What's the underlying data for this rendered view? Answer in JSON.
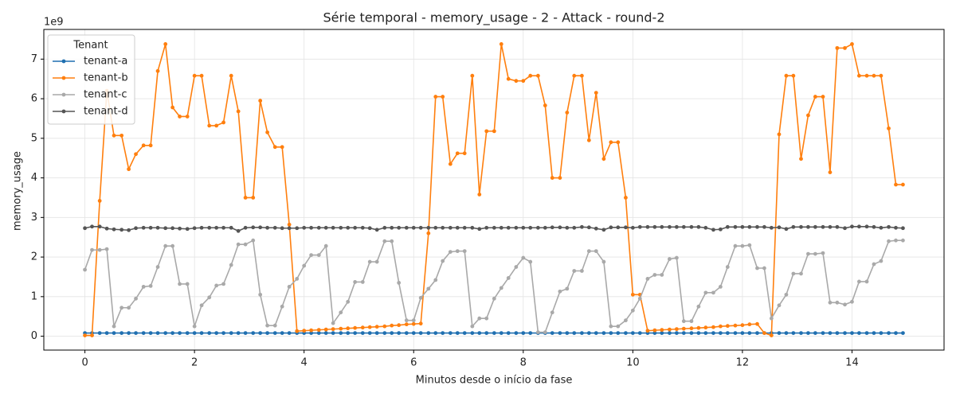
{
  "chart_data": {
    "type": "line",
    "title": "Série temporal - memory_usage - 2 - Attack - round-2",
    "x_label": "Minutos desde o início da fase",
    "y_label": "memory_usage",
    "y_offset_label": "1e9",
    "legend_title": "Tenant",
    "legend_position": "upper left",
    "grid": true,
    "xlim": [
      -0.75,
      15.68
    ],
    "ylim": [
      -0.35,
      7.75
    ],
    "xticks": [
      0,
      2,
      4,
      6,
      8,
      10,
      12,
      14
    ],
    "yticks": [
      0,
      1,
      2,
      3,
      4,
      5,
      6,
      7
    ],
    "x": [
      0,
      0.13,
      0.27,
      0.4,
      0.53,
      0.67,
      0.8,
      0.93,
      1.07,
      1.2,
      1.33,
      1.47,
      1.6,
      1.73,
      1.87,
      2,
      2.13,
      2.27,
      2.4,
      2.53,
      2.67,
      2.8,
      2.93,
      3.07,
      3.2,
      3.33,
      3.47,
      3.6,
      3.73,
      3.87,
      4,
      4.13,
      4.27,
      4.4,
      4.53,
      4.67,
      4.8,
      4.93,
      5.07,
      5.2,
      5.33,
      5.47,
      5.6,
      5.73,
      5.87,
      6,
      6.13,
      6.27,
      6.4,
      6.53,
      6.67,
      6.8,
      6.93,
      7.07,
      7.2,
      7.33,
      7.47,
      7.6,
      7.73,
      7.87,
      8,
      8.13,
      8.27,
      8.4,
      8.53,
      8.67,
      8.8,
      8.93,
      9.07,
      9.2,
      9.33,
      9.47,
      9.6,
      9.73,
      9.87,
      10,
      10.13,
      10.27,
      10.4,
      10.53,
      10.67,
      10.8,
      10.93,
      11.07,
      11.2,
      11.33,
      11.47,
      11.6,
      11.73,
      11.87,
      12,
      12.13,
      12.27,
      12.4,
      12.53,
      12.67,
      12.8,
      12.93,
      13.07,
      13.2,
      13.33,
      13.47,
      13.6,
      13.73,
      13.87,
      14,
      14.13,
      14.27,
      14.4,
      14.53,
      14.67,
      14.8,
      14.93
    ],
    "series": [
      {
        "name": "tenant-a",
        "color": "#1f6fb0",
        "values": [
          0.08,
          0.08,
          0.08,
          0.08,
          0.08,
          0.08,
          0.08,
          0.08,
          0.08,
          0.08,
          0.08,
          0.08,
          0.08,
          0.08,
          0.08,
          0.08,
          0.08,
          0.08,
          0.08,
          0.08,
          0.08,
          0.08,
          0.08,
          0.08,
          0.08,
          0.08,
          0.08,
          0.08,
          0.08,
          0.08,
          0.08,
          0.08,
          0.08,
          0.08,
          0.08,
          0.08,
          0.08,
          0.08,
          0.08,
          0.08,
          0.08,
          0.08,
          0.08,
          0.08,
          0.08,
          0.08,
          0.08,
          0.08,
          0.08,
          0.08,
          0.08,
          0.08,
          0.08,
          0.08,
          0.08,
          0.08,
          0.08,
          0.08,
          0.08,
          0.08,
          0.08,
          0.08,
          0.08,
          0.08,
          0.08,
          0.08,
          0.08,
          0.08,
          0.08,
          0.08,
          0.08,
          0.08,
          0.08,
          0.08,
          0.08,
          0.08,
          0.08,
          0.08,
          0.08,
          0.08,
          0.08,
          0.08,
          0.08,
          0.08,
          0.08,
          0.08,
          0.08,
          0.08,
          0.08,
          0.08,
          0.08,
          0.08,
          0.08,
          0.08,
          0.08,
          0.08,
          0.08,
          0.08,
          0.08,
          0.08,
          0.08,
          0.08,
          0.08,
          0.08,
          0.08,
          0.08,
          0.08,
          0.08,
          0.08,
          0.08,
          0.08,
          0.08,
          0.08
        ]
      },
      {
        "name": "tenant-b",
        "color": "#ff7f0e",
        "values": [
          0.02,
          0.02,
          3.42,
          6.2,
          5.07,
          5.07,
          4.22,
          4.6,
          4.82,
          4.82,
          6.7,
          7.38,
          5.78,
          5.55,
          5.55,
          6.58,
          6.58,
          5.32,
          5.32,
          5.4,
          6.58,
          5.68,
          3.5,
          3.5,
          5.95,
          5.15,
          4.78,
          4.78,
          2.82,
          0.13,
          0.14,
          0.15,
          0.16,
          0.17,
          0.18,
          0.19,
          0.2,
          0.21,
          0.22,
          0.23,
          0.24,
          0.25,
          0.27,
          0.28,
          0.3,
          0.31,
          0.32,
          2.6,
          6.05,
          6.05,
          4.35,
          4.62,
          4.62,
          6.58,
          3.58,
          5.18,
          5.18,
          7.38,
          6.5,
          6.45,
          6.45,
          6.58,
          6.58,
          5.83,
          4.0,
          4.0,
          5.65,
          6.58,
          6.58,
          4.95,
          6.15,
          4.48,
          4.9,
          4.9,
          3.5,
          1.05,
          1.05,
          0.14,
          0.15,
          0.16,
          0.17,
          0.18,
          0.19,
          0.2,
          0.21,
          0.22,
          0.23,
          0.25,
          0.26,
          0.27,
          0.28,
          0.3,
          0.31,
          0.08,
          0.02,
          5.1,
          6.58,
          6.58,
          4.48,
          5.58,
          6.05,
          6.05,
          4.14,
          7.28,
          7.28,
          7.38,
          6.58,
          6.58,
          6.58,
          6.58,
          5.25,
          3.83,
          3.83
        ]
      },
      {
        "name": "tenant-c",
        "color": "#a9a9a9",
        "values": [
          1.68,
          2.18,
          2.18,
          2.2,
          0.25,
          0.72,
          0.72,
          0.95,
          1.25,
          1.27,
          1.75,
          2.28,
          2.28,
          1.32,
          1.32,
          0.25,
          0.78,
          0.98,
          1.28,
          1.32,
          1.8,
          2.32,
          2.32,
          2.42,
          1.05,
          0.27,
          0.27,
          0.75,
          1.25,
          1.45,
          1.78,
          2.05,
          2.05,
          2.28,
          0.33,
          0.6,
          0.87,
          1.37,
          1.37,
          1.88,
          1.88,
          2.4,
          2.4,
          1.35,
          0.4,
          0.4,
          0.97,
          1.2,
          1.42,
          1.9,
          2.13,
          2.15,
          2.15,
          0.25,
          0.45,
          0.45,
          0.95,
          1.22,
          1.47,
          1.75,
          1.98,
          1.88,
          0.1,
          0.1,
          0.6,
          1.13,
          1.2,
          1.65,
          1.65,
          2.15,
          2.15,
          1.88,
          0.25,
          0.25,
          0.4,
          0.65,
          0.95,
          1.45,
          1.55,
          1.55,
          1.95,
          1.98,
          0.38,
          0.38,
          0.75,
          1.1,
          1.1,
          1.25,
          1.75,
          2.28,
          2.28,
          2.3,
          1.72,
          1.72,
          0.45,
          0.78,
          1.05,
          1.58,
          1.58,
          2.08,
          2.08,
          2.1,
          0.85,
          0.85,
          0.8,
          0.87,
          1.38,
          1.38,
          1.82,
          1.9,
          2.4,
          2.42,
          2.42
        ]
      },
      {
        "name": "tenant-d",
        "color": "#555555",
        "values": [
          2.73,
          2.77,
          2.77,
          2.72,
          2.7,
          2.69,
          2.68,
          2.73,
          2.74,
          2.74,
          2.74,
          2.73,
          2.73,
          2.72,
          2.71,
          2.73,
          2.74,
          2.74,
          2.74,
          2.74,
          2.74,
          2.66,
          2.74,
          2.75,
          2.75,
          2.74,
          2.74,
          2.73,
          2.73,
          2.73,
          2.74,
          2.74,
          2.74,
          2.74,
          2.74,
          2.74,
          2.74,
          2.74,
          2.74,
          2.73,
          2.69,
          2.74,
          2.74,
          2.74,
          2.74,
          2.74,
          2.74,
          2.74,
          2.74,
          2.74,
          2.74,
          2.74,
          2.74,
          2.74,
          2.71,
          2.74,
          2.74,
          2.74,
          2.74,
          2.74,
          2.74,
          2.74,
          2.74,
          2.74,
          2.75,
          2.75,
          2.74,
          2.74,
          2.76,
          2.75,
          2.72,
          2.69,
          2.75,
          2.75,
          2.75,
          2.74,
          2.76,
          2.76,
          2.76,
          2.76,
          2.76,
          2.76,
          2.76,
          2.76,
          2.76,
          2.74,
          2.69,
          2.7,
          2.76,
          2.76,
          2.76,
          2.76,
          2.76,
          2.76,
          2.74,
          2.75,
          2.71,
          2.76,
          2.76,
          2.76,
          2.76,
          2.76,
          2.76,
          2.76,
          2.73,
          2.77,
          2.77,
          2.77,
          2.76,
          2.74,
          2.76,
          2.74,
          2.73
        ]
      }
    ]
  }
}
